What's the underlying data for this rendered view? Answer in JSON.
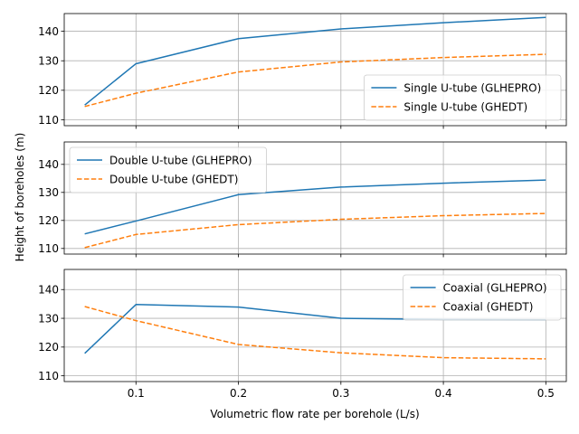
{
  "chart_data": [
    {
      "type": "line",
      "x": [
        0.05,
        0.1,
        0.2,
        0.3,
        0.4,
        0.5
      ],
      "ylim": [
        108,
        146
      ],
      "yticks": [
        110,
        120,
        130,
        140
      ],
      "grid": true,
      "legend_loc": "lower-right",
      "series": [
        {
          "name": "Single U-tube (GLHEPRO)",
          "style": "solid",
          "color": "#1f77b4",
          "values": [
            115.0,
            129.0,
            137.5,
            140.8,
            142.9,
            144.7
          ]
        },
        {
          "name": "Single U-tube (GHEDT)",
          "style": "dashed",
          "color": "#ff7f0e",
          "values": [
            114.5,
            119.0,
            126.2,
            129.6,
            131.1,
            132.2
          ]
        }
      ]
    },
    {
      "type": "line",
      "x": [
        0.05,
        0.1,
        0.2,
        0.3,
        0.4,
        0.5
      ],
      "ylim": [
        108,
        148
      ],
      "yticks": [
        110,
        120,
        130,
        140
      ],
      "grid": true,
      "legend_loc": "upper-left",
      "series": [
        {
          "name": "Double U-tube (GLHEPRO)",
          "style": "solid",
          "color": "#1f77b4",
          "values": [
            115.2,
            119.8,
            129.2,
            131.9,
            133.3,
            134.4
          ]
        },
        {
          "name": "Double U-tube (GHEDT)",
          "style": "dashed",
          "color": "#ff7f0e",
          "values": [
            110.3,
            115.0,
            118.5,
            120.4,
            121.7,
            122.5
          ]
        }
      ]
    },
    {
      "type": "line",
      "x": [
        0.05,
        0.1,
        0.2,
        0.3,
        0.4,
        0.5
      ],
      "ylim": [
        108,
        147
      ],
      "yticks": [
        110,
        120,
        130,
        140
      ],
      "grid": true,
      "legend_loc": "upper-right",
      "series": [
        {
          "name": "Coaxial (GLHEPRO)",
          "style": "solid",
          "color": "#1f77b4",
          "values": [
            117.8,
            134.8,
            133.9,
            130.0,
            129.6,
            129.5
          ]
        },
        {
          "name": "Coaxial (GHEDT)",
          "style": "dashed",
          "color": "#ff7f0e",
          "values": [
            134.1,
            129.2,
            120.9,
            118.0,
            116.3,
            115.9
          ]
        }
      ]
    }
  ],
  "xlim": [
    0.03,
    0.52
  ],
  "xticks": [
    0.1,
    0.2,
    0.3,
    0.4,
    0.5
  ],
  "xlabel": "Volumetric flow rate per borehole (L/s)",
  "ylabel": "Height of boreholes (m)"
}
